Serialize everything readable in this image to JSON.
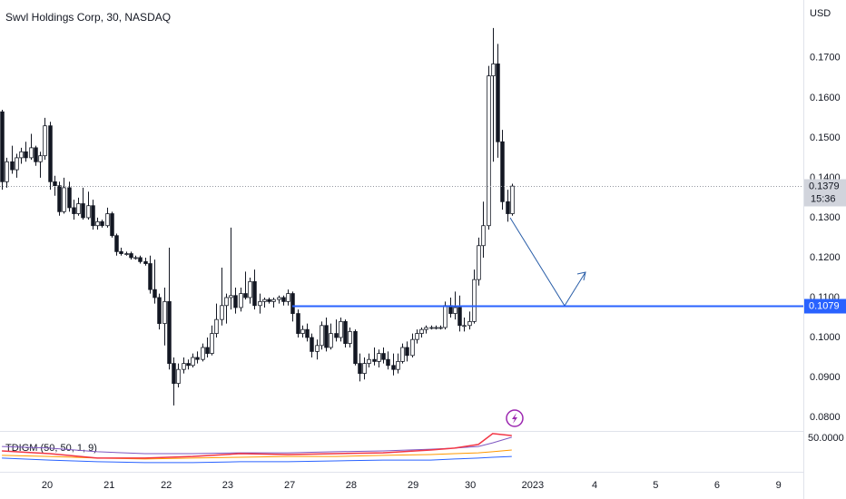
{
  "chart_data": {
    "type": "candlestick",
    "title": "Swvl Holdings Corp, 30, NASDAQ",
    "currency": "USD",
    "countdown": "15:36",
    "colors": {
      "up": "#ffffff",
      "down": "#131722",
      "outline": "#131722",
      "hline": "#2962ff"
    },
    "xlim": [
      -0.4,
      168.2
    ],
    "xticks": [
      {
        "value": 9.5,
        "label": "20"
      },
      {
        "value": 22.5,
        "label": "21"
      },
      {
        "value": 34.5,
        "label": "22"
      },
      {
        "value": 47.4,
        "label": "23"
      },
      {
        "value": 60.4,
        "label": "27"
      },
      {
        "value": 73.3,
        "label": "28"
      },
      {
        "value": 86.3,
        "label": "29"
      },
      {
        "value": 98.3,
        "label": "30"
      },
      {
        "value": 111.4,
        "label": "2023"
      },
      {
        "value": 124.4,
        "label": "4"
      },
      {
        "value": 137.2,
        "label": "5"
      },
      {
        "value": 150.1,
        "label": "6"
      },
      {
        "value": 163,
        "label": "9"
      }
    ],
    "ylim": [
      0.0766,
      0.1845
    ],
    "yticks": [
      {
        "value": 0.08,
        "label": "0.0800"
      },
      {
        "value": 0.09,
        "label": "0.0900"
      },
      {
        "value": 0.1,
        "label": "0.1000"
      },
      {
        "value": 0.11,
        "label": "0.1100"
      },
      {
        "value": 0.12,
        "label": "0.1200"
      },
      {
        "value": 0.13,
        "label": "0.1300"
      },
      {
        "value": 0.14,
        "label": "0.1400"
      },
      {
        "value": 0.15,
        "label": "0.1500"
      },
      {
        "value": 0.16,
        "label": "0.1600"
      },
      {
        "value": 0.17,
        "label": "0.1700"
      }
    ],
    "hline": 0.1079,
    "open": [
      0.1565,
      0.139,
      0.144,
      0.142,
      0.145,
      0.1465,
      0.145,
      0.1475,
      0.144,
      0.1455,
      0.153,
      0.139,
      0.138,
      0.1315,
      0.1375,
      0.1325,
      0.131,
      0.1335,
      0.13,
      0.133,
      0.128,
      0.129,
      0.128,
      0.131,
      0.1255,
      0.1215,
      0.121,
      0.121,
      0.12,
      0.12,
      0.119,
      0.1185,
      0.112,
      0.11,
      0.1035,
      0.109,
      0.0935,
      0.0885,
      0.092,
      0.0935,
      0.093,
      0.095,
      0.0945,
      0.0975,
      0.096,
      0.101,
      0.1045,
      0.108,
      0.11,
      0.1105,
      0.1075,
      0.111,
      0.11,
      0.114,
      0.108,
      0.109,
      0.1095,
      0.109,
      0.1095,
      0.11,
      0.109,
      0.111,
      0.106,
      0.101,
      0.102,
      0.1,
      0.0965,
      0.098,
      0.103,
      0.0975,
      0.101,
      0.1,
      0.104,
      0.0985,
      0.1015,
      0.0935,
      0.091,
      0.0935,
      0.0945,
      0.094,
      0.096,
      0.0945,
      0.093,
      0.092,
      0.094,
      0.0975,
      0.0955,
      0.0995,
      0.101,
      0.102,
      0.1025,
      0.1025,
      0.1025,
      0.1025,
      0.108,
      0.106,
      0.1075,
      0.103,
      0.103,
      0.104,
      0.1145,
      0.123,
      0.128,
      0.1655,
      0.1685,
      0.149,
      0.134,
      0.131
    ],
    "high": [
      0.157,
      0.145,
      0.148,
      0.146,
      0.1475,
      0.149,
      0.151,
      0.148,
      0.1465,
      0.155,
      0.154,
      0.1405,
      0.139,
      0.14,
      0.139,
      0.1345,
      0.135,
      0.1375,
      0.1365,
      0.1345,
      0.13,
      0.1295,
      0.1325,
      0.1315,
      0.126,
      0.1225,
      0.1215,
      0.1215,
      0.1205,
      0.1205,
      0.12,
      0.1205,
      0.1195,
      0.111,
      0.1125,
      0.1225,
      0.095,
      0.0935,
      0.095,
      0.0945,
      0.096,
      0.0965,
      0.0985,
      0.1,
      0.103,
      0.1085,
      0.1175,
      0.111,
      0.1275,
      0.1125,
      0.1125,
      0.1165,
      0.115,
      0.117,
      0.111,
      0.11,
      0.11,
      0.11,
      0.1105,
      0.1105,
      0.112,
      0.1115,
      0.107,
      0.103,
      0.1035,
      0.101,
      0.0995,
      0.104,
      0.105,
      0.1035,
      0.1045,
      0.105,
      0.1045,
      0.1025,
      0.102,
      0.096,
      0.095,
      0.096,
      0.0975,
      0.097,
      0.0975,
      0.0965,
      0.096,
      0.096,
      0.0985,
      0.099,
      0.101,
      0.102,
      0.1025,
      0.103,
      0.103,
      0.103,
      0.103,
      0.109,
      0.11,
      0.1115,
      0.1105,
      0.105,
      0.1065,
      0.117,
      0.125,
      0.134,
      0.168,
      0.1775,
      0.1735,
      0.152,
      0.137,
      0.1385
    ],
    "low": [
      0.137,
      0.1375,
      0.141,
      0.14,
      0.1435,
      0.144,
      0.1445,
      0.143,
      0.14,
      0.1445,
      0.137,
      0.1355,
      0.1305,
      0.131,
      0.1315,
      0.1295,
      0.1305,
      0.1295,
      0.1295,
      0.127,
      0.127,
      0.1275,
      0.1275,
      0.125,
      0.1205,
      0.1205,
      0.1205,
      0.1195,
      0.1195,
      0.1185,
      0.118,
      0.111,
      0.1085,
      0.102,
      0.098,
      0.092,
      0.083,
      0.0875,
      0.091,
      0.092,
      0.0925,
      0.0935,
      0.094,
      0.095,
      0.0955,
      0.1,
      0.103,
      0.1035,
      0.107,
      0.106,
      0.1065,
      0.1095,
      0.1085,
      0.107,
      0.106,
      0.1075,
      0.1085,
      0.1075,
      0.1085,
      0.108,
      0.108,
      0.104,
      0.1,
      0.1,
      0.099,
      0.095,
      0.0945,
      0.097,
      0.0965,
      0.097,
      0.099,
      0.099,
      0.0975,
      0.0975,
      0.093,
      0.089,
      0.0895,
      0.0925,
      0.093,
      0.0925,
      0.0935,
      0.092,
      0.0905,
      0.091,
      0.0935,
      0.094,
      0.095,
      0.0985,
      0.1,
      0.101,
      0.102,
      0.102,
      0.102,
      0.102,
      0.105,
      0.1045,
      0.1015,
      0.1015,
      0.102,
      0.1035,
      0.113,
      0.12,
      0.127,
      0.144,
      0.145,
      0.132,
      0.129,
      0.1305
    ],
    "close": [
      0.139,
      0.144,
      0.142,
      0.145,
      0.1465,
      0.145,
      0.1475,
      0.144,
      0.1455,
      0.153,
      0.139,
      0.138,
      0.1315,
      0.1375,
      0.1325,
      0.131,
      0.1335,
      0.13,
      0.133,
      0.128,
      0.129,
      0.128,
      0.131,
      0.1255,
      0.1215,
      0.121,
      0.121,
      0.12,
      0.12,
      0.119,
      0.1185,
      0.112,
      0.11,
      0.1035,
      0.109,
      0.0935,
      0.0885,
      0.092,
      0.0935,
      0.093,
      0.095,
      0.0945,
      0.0975,
      0.096,
      0.101,
      0.1045,
      0.108,
      0.11,
      0.1105,
      0.1075,
      0.111,
      0.11,
      0.114,
      0.108,
      0.109,
      0.1095,
      0.109,
      0.1095,
      0.11,
      0.109,
      0.111,
      0.106,
      0.101,
      0.102,
      0.1,
      0.0965,
      0.098,
      0.103,
      0.0975,
      0.101,
      0.1,
      0.104,
      0.0985,
      0.1015,
      0.0935,
      0.091,
      0.0935,
      0.0945,
      0.094,
      0.096,
      0.0945,
      0.093,
      0.092,
      0.094,
      0.0975,
      0.0955,
      0.0995,
      0.101,
      0.102,
      0.1025,
      0.1025,
      0.1025,
      0.1025,
      0.108,
      0.106,
      0.1075,
      0.103,
      0.103,
      0.104,
      0.1145,
      0.123,
      0.128,
      0.1655,
      0.1685,
      0.149,
      0.134,
      0.131,
      0.1379
    ],
    "indicator": {
      "name": "TDIGM (50, 50, 1, 9)",
      "ylim": [
        38,
        52
      ],
      "yticks": [
        {
          "value": 50,
          "label": "50.0000"
        }
      ],
      "x": [
        0,
        10,
        20,
        30,
        40,
        50,
        60,
        70,
        80,
        90,
        95,
        100,
        103,
        107
      ],
      "series": [
        {
          "color": "#7e57c2",
          "values": [
            47.1,
            46.5,
            45.2,
            44.5,
            44.5,
            44.8,
            44.8,
            45.2,
            45.5,
            46.1,
            46.5,
            47.1,
            48.4,
            50.4
          ]
        },
        {
          "color": "#2962ff",
          "values": [
            42.9,
            42.2,
            41.6,
            41.3,
            41.3,
            41.6,
            41.6,
            41.9,
            42.2,
            42.2,
            42.6,
            42.9,
            43.2,
            43.5
          ]
        },
        {
          "color": "#ff9800",
          "values": [
            43.9,
            43.5,
            42.9,
            42.6,
            42.9,
            43.2,
            43.5,
            43.5,
            43.9,
            44.2,
            44.5,
            44.8,
            45.2,
            45.8
          ]
        },
        {
          "color": "#f23645",
          "values": [
            45.5,
            44.5,
            42.9,
            42.9,
            43.5,
            44.5,
            44.2,
            44.5,
            44.8,
            45.8,
            46.5,
            47.8,
            51.7,
            51.0
          ]
        }
      ]
    }
  }
}
